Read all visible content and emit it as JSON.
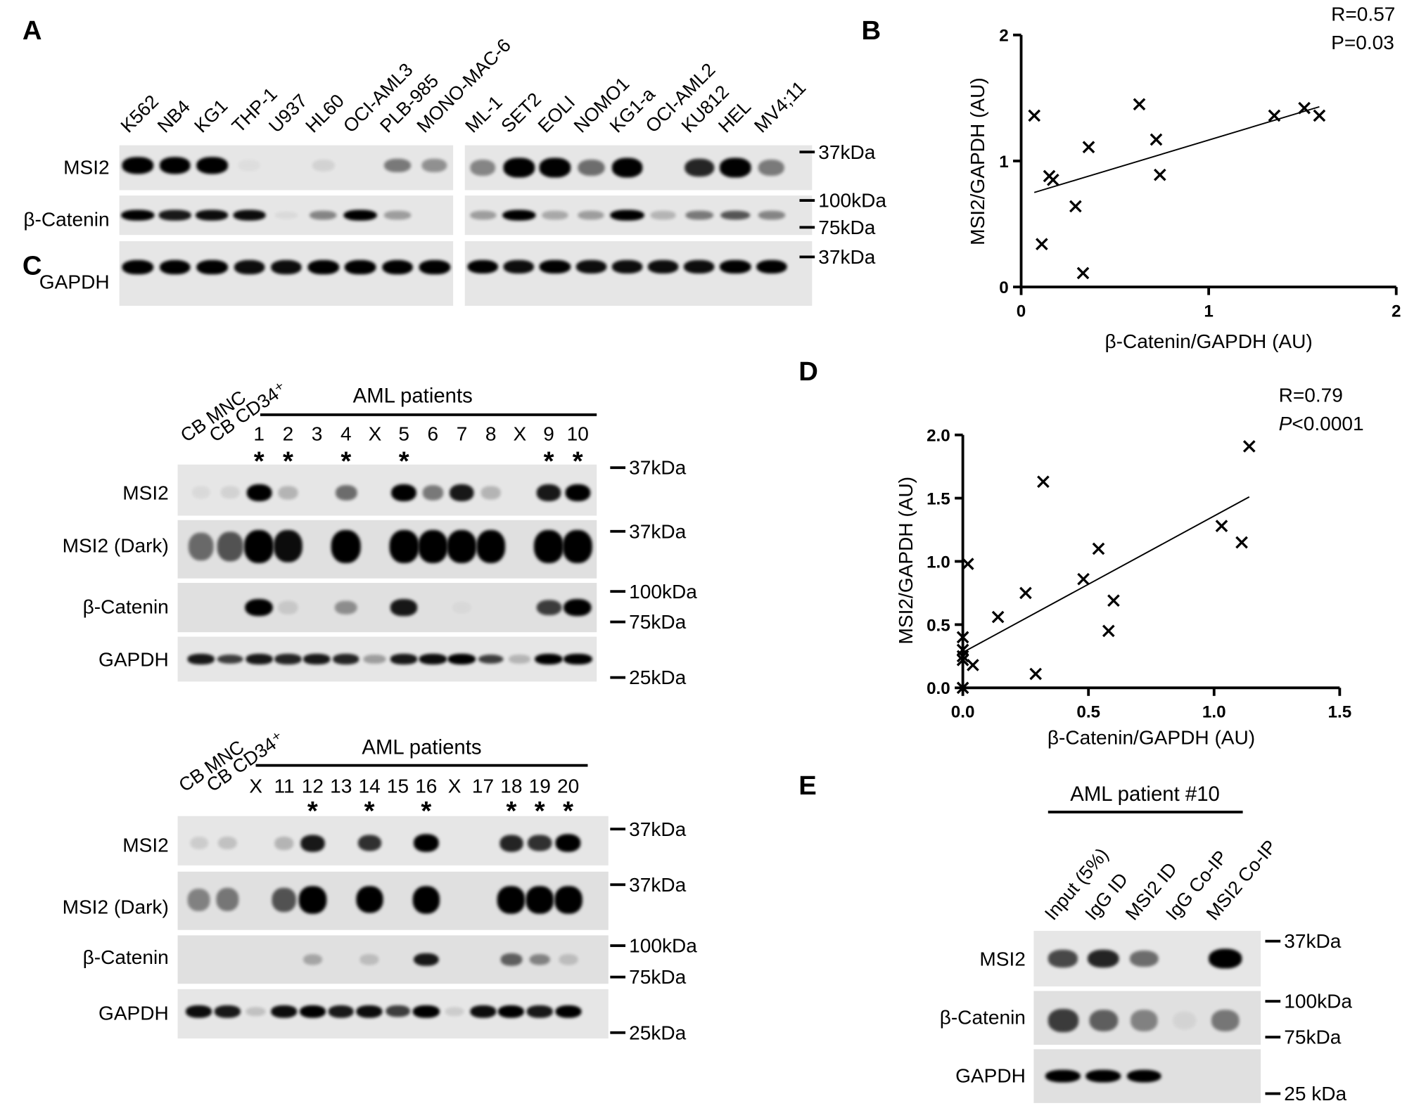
{
  "panel_labels": [
    "A",
    "B",
    "C",
    "D",
    "E"
  ],
  "panel_a": {
    "lanes_left": [
      "K562",
      "NB4",
      "KG1",
      "THP-1",
      "U937",
      "HL60",
      "OCI-AML3",
      "PLB-985",
      "MONO-MAC-6"
    ],
    "lanes_right": [
      "ML-1",
      "SET2",
      "EOLI",
      "NOMO1",
      "KG1-a",
      "OCI-AML2",
      "KU812",
      "HEL",
      "MV4;11"
    ],
    "row_labels": [
      "MSI2",
      "β-Catenin",
      "GAPDH"
    ],
    "markers": [
      "37kDa",
      "100kDa",
      "75kDa",
      "37kDa"
    ],
    "bands": {
      "left": {
        "msi2": [
          1,
          0.95,
          1,
          0.03,
          0,
          0.08,
          0,
          0.45,
          0.35
        ],
        "beta": [
          0.95,
          0.85,
          0.9,
          0.9,
          0.05,
          0.4,
          0.95,
          0.3,
          0
        ],
        "gapdh": [
          0.95,
          0.95,
          0.95,
          0.9,
          0.9,
          0.95,
          0.95,
          0.95,
          0.95
        ]
      },
      "right": {
        "msi2": [
          0.4,
          0.95,
          0.95,
          0.5,
          0.95,
          0,
          0.8,
          0.95,
          0.45
        ],
        "beta": [
          0.3,
          1,
          0.25,
          0.3,
          1,
          0.2,
          0.45,
          0.6,
          0.4
        ],
        "gapdh": [
          0.95,
          0.9,
          0.95,
          0.9,
          0.9,
          0.9,
          0.9,
          0.95,
          0.95
        ]
      }
    }
  },
  "panel_c_top": {
    "header": "AML patients",
    "control_lanes": [
      "CB MNC",
      "CB CD34⁺"
    ],
    "patient_lanes": [
      "1",
      "2",
      "3",
      "4",
      "X",
      "5",
      "6",
      "7",
      "8",
      "X",
      "9",
      "10"
    ],
    "starred": [
      "1",
      "2",
      "4",
      "5",
      "9",
      "10"
    ],
    "star_symbol": "*",
    "row_labels": [
      "MSI2",
      "MSI2 (Dark)",
      "β-Catenin",
      "GAPDH"
    ],
    "markers": [
      "37kDa",
      "37kDa",
      "100kDa",
      "75kDa",
      "25kDa"
    ],
    "bands": {
      "msi2": [
        0.05,
        0.08,
        0.95,
        0.2,
        0,
        0.5,
        0,
        0.95,
        0.45,
        0.85,
        0.2,
        0,
        0.85,
        0.95
      ],
      "msi2_dark": [
        0.5,
        0.6,
        1,
        0.9,
        0,
        1,
        0,
        1,
        1,
        1,
        0.95,
        0,
        1,
        1
      ],
      "beta": [
        0,
        0,
        1,
        0.1,
        0,
        0.35,
        0,
        0.85,
        0,
        0.03,
        0,
        0,
        0.7,
        1
      ],
      "gapdh": [
        0.85,
        0.7,
        0.85,
        0.8,
        0.85,
        0.8,
        0.3,
        0.85,
        0.9,
        0.95,
        0.7,
        0.2,
        0.95,
        0.95
      ]
    }
  },
  "panel_c_bottom": {
    "header": "AML patients",
    "control_lanes": [
      "CB MNC",
      "CB CD34⁺"
    ],
    "patient_lanes": [
      "X",
      "11",
      "12",
      "13",
      "14",
      "15",
      "16",
      "X",
      "17",
      "18",
      "19",
      "20"
    ],
    "starred": [
      "12",
      "14",
      "16",
      "18",
      "19",
      "20"
    ],
    "star_symbol": "*",
    "row_labels": [
      "MSI2",
      "MSI2 (Dark)",
      "β-Catenin",
      "GAPDH"
    ],
    "markers": [
      "37kDa",
      "37kDa",
      "100kDa",
      "75kDa",
      "25kDa"
    ],
    "bands": {
      "msi2": [
        0.1,
        0.15,
        0,
        0.2,
        0.85,
        0,
        0.75,
        0,
        1,
        0,
        0,
        0.8,
        0.75,
        1
      ],
      "msi2_dark": [
        0.4,
        0.45,
        0,
        0.6,
        1,
        0,
        0.95,
        0,
        1,
        0,
        0,
        1,
        1,
        1
      ],
      "beta": [
        0,
        0,
        0,
        0,
        0.25,
        0,
        0.15,
        0,
        0.85,
        0,
        0,
        0.55,
        0.4,
        0.15
      ],
      "gapdh": [
        0.9,
        0.85,
        0.15,
        0.9,
        0.95,
        0.85,
        0.9,
        0.7,
        0.95,
        0.1,
        0.9,
        0.95,
        0.85,
        0.95
      ]
    }
  },
  "panel_e": {
    "header": "AML patient #10",
    "lanes": [
      "Input (5%)",
      "IgG ID",
      "MSI2 ID",
      "IgG Co-IP",
      "MSI2 Co-IP"
    ],
    "row_labels": [
      "MSI2",
      "β-Catenin",
      "GAPDH"
    ],
    "markers": [
      "37kDa",
      "100kDa",
      "75kDa",
      "25 kDa"
    ],
    "bands": {
      "msi2": [
        0.65,
        0.8,
        0.5,
        0,
        1
      ],
      "beta": [
        0.7,
        0.55,
        0.4,
        0.05,
        0.45
      ],
      "gapdh": [
        0.95,
        0.95,
        0.95,
        0,
        0
      ]
    }
  },
  "chart_data": [
    {
      "panel": "B",
      "type": "scatter",
      "xlabel": "β-Catenin/GAPDH (AU)",
      "ylabel": "MSI2/GAPDH (AU)",
      "xlim": [
        0,
        2
      ],
      "ylim": [
        0,
        2
      ],
      "xticks": [
        "0",
        "1",
        "2"
      ],
      "xtick_values": [
        0,
        1,
        2
      ],
      "yticks": [
        "0",
        "1",
        "2"
      ],
      "ytick_values": [
        0,
        1,
        2
      ],
      "annotations": [
        "R=0.57",
        "P=0.03"
      ],
      "marker": "x",
      "points": [
        [
          0.07,
          1.36
        ],
        [
          0.11,
          0.34
        ],
        [
          0.15,
          0.88
        ],
        [
          0.17,
          0.85
        ],
        [
          0.29,
          0.64
        ],
        [
          0.33,
          0.11
        ],
        [
          0.36,
          1.11
        ],
        [
          0.63,
          1.45
        ],
        [
          0.72,
          1.17
        ],
        [
          0.74,
          0.89
        ],
        [
          1.35,
          1.36
        ],
        [
          1.51,
          1.42
        ],
        [
          1.59,
          1.36
        ]
      ],
      "fit": {
        "x": [
          0.07,
          1.59
        ],
        "y": [
          0.75,
          1.43
        ]
      },
      "grid": false
    },
    {
      "panel": "D",
      "type": "scatter",
      "xlabel": "β-Catenin/GAPDH (AU)",
      "ylabel": "MSI2/GAPDH (AU)",
      "xlim": [
        0,
        1.5
      ],
      "ylim": [
        0,
        2.0
      ],
      "xticks": [
        "0.0",
        "0.5",
        "1.0",
        "1.5"
      ],
      "xtick_values": [
        0,
        0.5,
        1.0,
        1.5
      ],
      "yticks": [
        "0.0",
        "0.5",
        "1.0",
        "1.5",
        "2.0"
      ],
      "ytick_values": [
        0,
        0.5,
        1.0,
        1.5,
        2.0
      ],
      "annotations": [
        "R=0.79",
        "P<0.0001"
      ],
      "annotation_p_prefix": "P",
      "annotation_p_rest": "<0.0001",
      "marker": "x",
      "points": [
        [
          1.14,
          1.91
        ],
        [
          0.32,
          1.63
        ],
        [
          1.03,
          1.28
        ],
        [
          1.11,
          1.15
        ],
        [
          0.54,
          1.1
        ],
        [
          0.02,
          0.98
        ],
        [
          0.48,
          0.86
        ],
        [
          0.25,
          0.75
        ],
        [
          0.6,
          0.69
        ],
        [
          0.14,
          0.56
        ],
        [
          0.58,
          0.45
        ],
        [
          0.0,
          0.4
        ],
        [
          0.0,
          0.3
        ],
        [
          0.0,
          0.25
        ],
        [
          0.0,
          0.22
        ],
        [
          0.04,
          0.18
        ],
        [
          0.29,
          0.11
        ],
        [
          0.0,
          0.0
        ]
      ],
      "fit": {
        "x": [
          0.0,
          1.14
        ],
        "y": [
          0.28,
          1.51
        ]
      },
      "grid": false
    }
  ]
}
